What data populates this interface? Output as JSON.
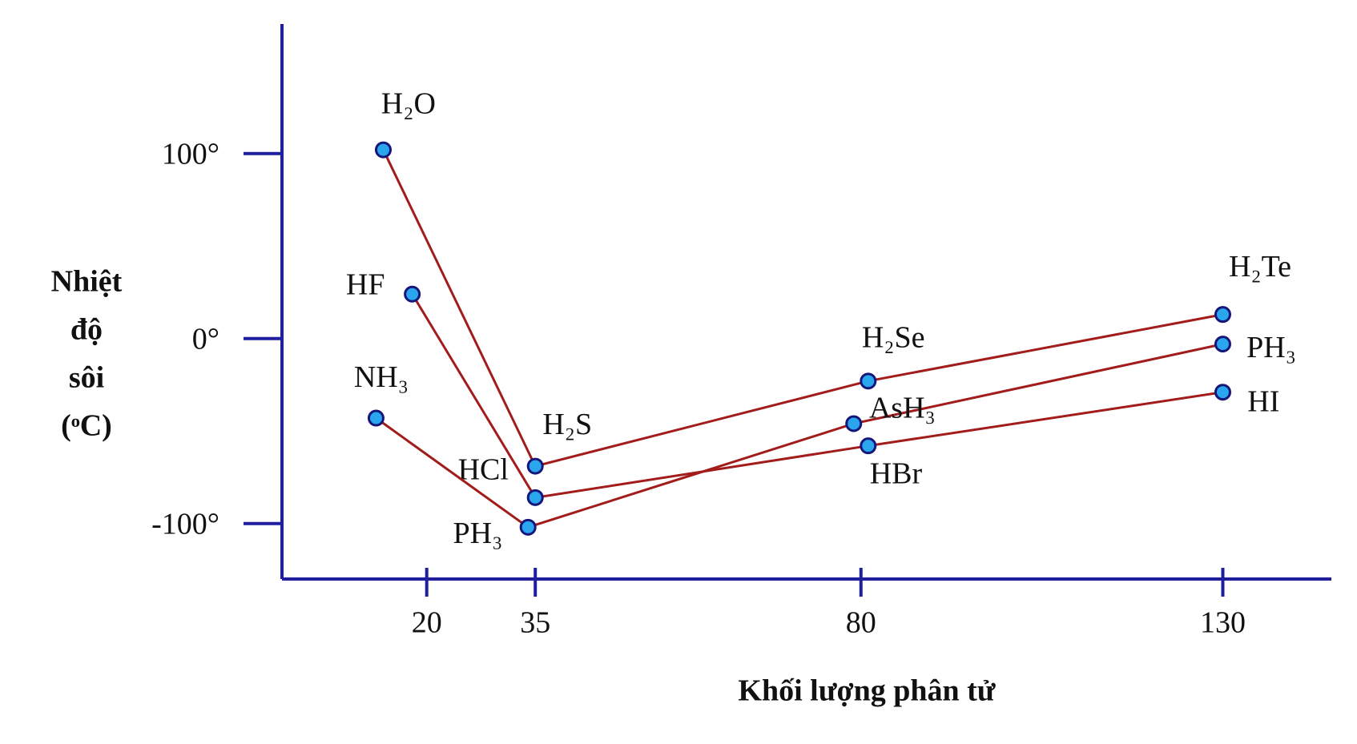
{
  "chart_data": {
    "type": "line",
    "ylabel": [
      "Nhiệt",
      "độ",
      "sôi",
      "(ᵒC)"
    ],
    "xlabel": "Khối lượng phân tử",
    "xlim": [
      0,
      145
    ],
    "xticks": [
      20,
      35,
      80,
      130
    ],
    "ylim": [
      -130,
      170
    ],
    "yticks": [
      {
        "value": 100,
        "label": "100°"
      },
      {
        "value": 0,
        "label": "0°"
      },
      {
        "value": -100,
        "label": "-100°"
      }
    ],
    "line_color": "#a31c1c",
    "marker_color": "#2aa6ee",
    "series": [
      {
        "labels": [
          "H₂O",
          "H₂S",
          "H₂Se",
          "H₂Te"
        ],
        "x": [
          14,
          35,
          81,
          130
        ],
        "values": [
          102,
          -69,
          -23,
          13
        ]
      },
      {
        "labels": [
          "HF",
          "HCl",
          "HBr",
          "HI"
        ],
        "x": [
          18,
          35,
          81,
          130
        ],
        "values": [
          24,
          -86,
          -58,
          -29
        ]
      },
      {
        "labels": [
          "NH₃",
          "PH₃",
          "AsH₃",
          "PH₃"
        ],
        "x": [
          13,
          34,
          79,
          130
        ],
        "values": [
          -43,
          -102,
          -46,
          -3
        ]
      }
    ]
  }
}
